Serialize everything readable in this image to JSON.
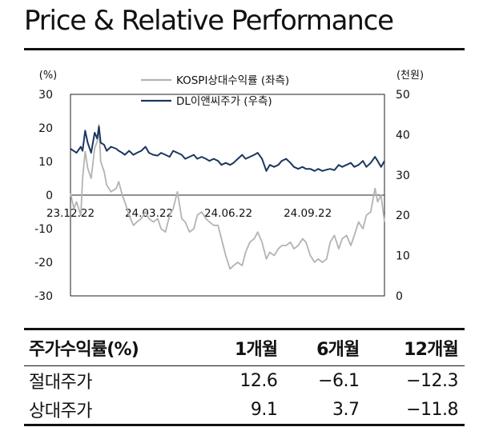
{
  "header": {
    "title": "Price & Relative Performance"
  },
  "chart_data": {
    "type": "line",
    "y_left_unit": "(%)",
    "y_right_unit": "(천원)",
    "y_left_ticks": [
      "30",
      "20",
      "10",
      "0",
      "-10",
      "-20",
      "-30"
    ],
    "y_right_ticks": [
      "50",
      "40",
      "30",
      "20",
      "10",
      "0"
    ],
    "ylim_left": [
      -30,
      30
    ],
    "ylim_right": [
      0,
      50
    ],
    "x_ticks": [
      {
        "label": "23.12.22",
        "date": "2023-12-22"
      },
      {
        "label": "24.03.22",
        "date": "2024-03-22"
      },
      {
        "label": "24.06.22",
        "date": "2024-06-22"
      },
      {
        "label": "24.09.22",
        "date": "2024-09-22"
      }
    ],
    "x_range": [
      "2023-12-22",
      "2024-12-20"
    ],
    "legend_position": "top-center",
    "series": [
      {
        "name": "KOSPI상대수익률 (좌측)",
        "axis": "left",
        "color": "#b3b3b3",
        "points": [
          [
            "2023-12-22",
            0.5
          ],
          [
            "2023-12-26",
            -4
          ],
          [
            "2023-12-29",
            -2
          ],
          [
            "2024-01-03",
            -6
          ],
          [
            "2024-01-05",
            5
          ],
          [
            "2024-01-08",
            13
          ],
          [
            "2024-01-11",
            8
          ],
          [
            "2024-01-15",
            5
          ],
          [
            "2024-01-19",
            14
          ],
          [
            "2024-01-22",
            16
          ],
          [
            "2024-01-24",
            21
          ],
          [
            "2024-01-26",
            10
          ],
          [
            "2024-01-30",
            7
          ],
          [
            "2024-02-02",
            3
          ],
          [
            "2024-02-07",
            1
          ],
          [
            "2024-02-13",
            2
          ],
          [
            "2024-02-16",
            4
          ],
          [
            "2024-02-20",
            0
          ],
          [
            "2024-02-23",
            -2
          ],
          [
            "2024-02-28",
            -6
          ],
          [
            "2024-03-04",
            -9
          ],
          [
            "2024-03-08",
            -8
          ],
          [
            "2024-03-13",
            -7
          ],
          [
            "2024-03-18",
            -5
          ],
          [
            "2024-03-22",
            -7
          ],
          [
            "2024-03-27",
            -8
          ],
          [
            "2024-04-01",
            -7
          ],
          [
            "2024-04-05",
            -10
          ],
          [
            "2024-04-10",
            -11
          ],
          [
            "2024-04-15",
            -6
          ],
          [
            "2024-04-19",
            -4
          ],
          [
            "2024-04-24",
            1
          ],
          [
            "2024-04-29",
            -7
          ],
          [
            "2024-05-03",
            -8
          ],
          [
            "2024-05-08",
            -11
          ],
          [
            "2024-05-13",
            -10
          ],
          [
            "2024-05-17",
            -6
          ],
          [
            "2024-05-22",
            -5
          ],
          [
            "2024-05-27",
            -7
          ],
          [
            "2024-05-31",
            -8
          ],
          [
            "2024-06-05",
            -9
          ],
          [
            "2024-06-10",
            -9
          ],
          [
            "2024-06-14",
            -13
          ],
          [
            "2024-06-19",
            -18
          ],
          [
            "2024-06-24",
            -22
          ],
          [
            "2024-06-28",
            -21
          ],
          [
            "2024-07-03",
            -20
          ],
          [
            "2024-07-08",
            -21
          ],
          [
            "2024-07-12",
            -17
          ],
          [
            "2024-07-17",
            -14
          ],
          [
            "2024-07-22",
            -13
          ],
          [
            "2024-07-26",
            -11
          ],
          [
            "2024-07-31",
            -14
          ],
          [
            "2024-08-05",
            -19
          ],
          [
            "2024-08-09",
            -17
          ],
          [
            "2024-08-14",
            -18
          ],
          [
            "2024-08-19",
            -16
          ],
          [
            "2024-08-23",
            -15
          ],
          [
            "2024-08-28",
            -15
          ],
          [
            "2024-09-02",
            -14
          ],
          [
            "2024-09-06",
            -16
          ],
          [
            "2024-09-11",
            -15
          ],
          [
            "2024-09-16",
            -13
          ],
          [
            "2024-09-20",
            -14
          ],
          [
            "2024-09-25",
            -18
          ],
          [
            "2024-09-30",
            -20
          ],
          [
            "2024-10-04",
            -19
          ],
          [
            "2024-10-09",
            -20
          ],
          [
            "2024-10-14",
            -19
          ],
          [
            "2024-10-18",
            -14
          ],
          [
            "2024-10-23",
            -12
          ],
          [
            "2024-10-28",
            -16
          ],
          [
            "2024-11-01",
            -13
          ],
          [
            "2024-11-06",
            -12
          ],
          [
            "2024-11-11",
            -15
          ],
          [
            "2024-11-15",
            -12
          ],
          [
            "2024-11-20",
            -8
          ],
          [
            "2024-11-25",
            -10
          ],
          [
            "2024-11-29",
            -6
          ],
          [
            "2024-12-04",
            -5
          ],
          [
            "2024-12-09",
            2
          ],
          [
            "2024-12-12",
            -2
          ],
          [
            "2024-12-16",
            0
          ],
          [
            "2024-12-20",
            -8
          ]
        ]
      },
      {
        "name": "DL이앤씨주가 (우측)",
        "axis": "right",
        "color": "#1b3660",
        "points": [
          [
            "2023-12-22",
            36.5
          ],
          [
            "2023-12-29",
            35.5
          ],
          [
            "2024-01-03",
            37
          ],
          [
            "2024-01-05",
            36.0
          ],
          [
            "2024-01-08",
            41
          ],
          [
            "2024-01-11",
            38
          ],
          [
            "2024-01-15",
            35.5
          ],
          [
            "2024-01-19",
            40.5
          ],
          [
            "2024-01-22",
            39
          ],
          [
            "2024-01-24",
            42
          ],
          [
            "2024-01-26",
            38
          ],
          [
            "2024-01-30",
            37.5
          ],
          [
            "2024-02-02",
            36
          ],
          [
            "2024-02-07",
            37
          ],
          [
            "2024-02-13",
            36.5
          ],
          [
            "2024-02-16",
            36
          ],
          [
            "2024-02-20",
            35.5
          ],
          [
            "2024-02-23",
            35
          ],
          [
            "2024-02-28",
            36
          ],
          [
            "2024-03-04",
            35
          ],
          [
            "2024-03-08",
            35.5
          ],
          [
            "2024-03-13",
            36
          ],
          [
            "2024-03-18",
            37
          ],
          [
            "2024-03-22",
            35.5
          ],
          [
            "2024-03-27",
            35
          ],
          [
            "2024-04-01",
            34.8
          ],
          [
            "2024-04-05",
            35.5
          ],
          [
            "2024-04-10",
            35
          ],
          [
            "2024-04-15",
            34.5
          ],
          [
            "2024-04-19",
            36
          ],
          [
            "2024-04-24",
            35.5
          ],
          [
            "2024-04-29",
            35
          ],
          [
            "2024-05-03",
            34
          ],
          [
            "2024-05-08",
            34.5
          ],
          [
            "2024-05-13",
            35
          ],
          [
            "2024-05-17",
            34
          ],
          [
            "2024-05-22",
            34.5
          ],
          [
            "2024-05-27",
            34
          ],
          [
            "2024-05-31",
            33.5
          ],
          [
            "2024-06-05",
            34
          ],
          [
            "2024-06-10",
            33.5
          ],
          [
            "2024-06-14",
            32.5
          ],
          [
            "2024-06-19",
            33
          ],
          [
            "2024-06-24",
            32.5
          ],
          [
            "2024-06-28",
            33
          ],
          [
            "2024-07-03",
            34
          ],
          [
            "2024-07-08",
            35
          ],
          [
            "2024-07-12",
            34
          ],
          [
            "2024-07-17",
            34.5
          ],
          [
            "2024-07-22",
            35
          ],
          [
            "2024-07-26",
            35.5
          ],
          [
            "2024-07-31",
            34
          ],
          [
            "2024-08-05",
            31
          ],
          [
            "2024-08-09",
            32.5
          ],
          [
            "2024-08-14",
            32
          ],
          [
            "2024-08-19",
            32.5
          ],
          [
            "2024-08-23",
            33.5
          ],
          [
            "2024-08-28",
            34
          ],
          [
            "2024-09-02",
            33
          ],
          [
            "2024-09-06",
            32
          ],
          [
            "2024-09-11",
            31.5
          ],
          [
            "2024-09-16",
            32
          ],
          [
            "2024-09-20",
            31.5
          ],
          [
            "2024-09-25",
            31.5
          ],
          [
            "2024-09-30",
            31
          ],
          [
            "2024-10-04",
            31.5
          ],
          [
            "2024-10-09",
            31
          ],
          [
            "2024-10-14",
            31.3
          ],
          [
            "2024-10-18",
            31.5
          ],
          [
            "2024-10-23",
            31.2
          ],
          [
            "2024-10-28",
            32.5
          ],
          [
            "2024-11-01",
            32
          ],
          [
            "2024-11-06",
            32.5
          ],
          [
            "2024-11-11",
            33
          ],
          [
            "2024-11-15",
            32
          ],
          [
            "2024-11-20",
            32.5
          ],
          [
            "2024-11-25",
            33.5
          ],
          [
            "2024-11-29",
            32
          ],
          [
            "2024-12-04",
            33
          ],
          [
            "2024-12-09",
            34.5
          ],
          [
            "2024-12-12",
            33.5
          ],
          [
            "2024-12-16",
            32
          ],
          [
            "2024-12-20",
            33.5
          ]
        ]
      }
    ]
  },
  "table": {
    "headers": [
      "주가수익률(%)",
      "1개월",
      "6개월",
      "12개월"
    ],
    "rows": [
      [
        "절대주가",
        "12.6",
        "−6.1",
        "−12.3"
      ],
      [
        "상대주가",
        "9.1",
        "3.7",
        "−11.8"
      ]
    ]
  }
}
